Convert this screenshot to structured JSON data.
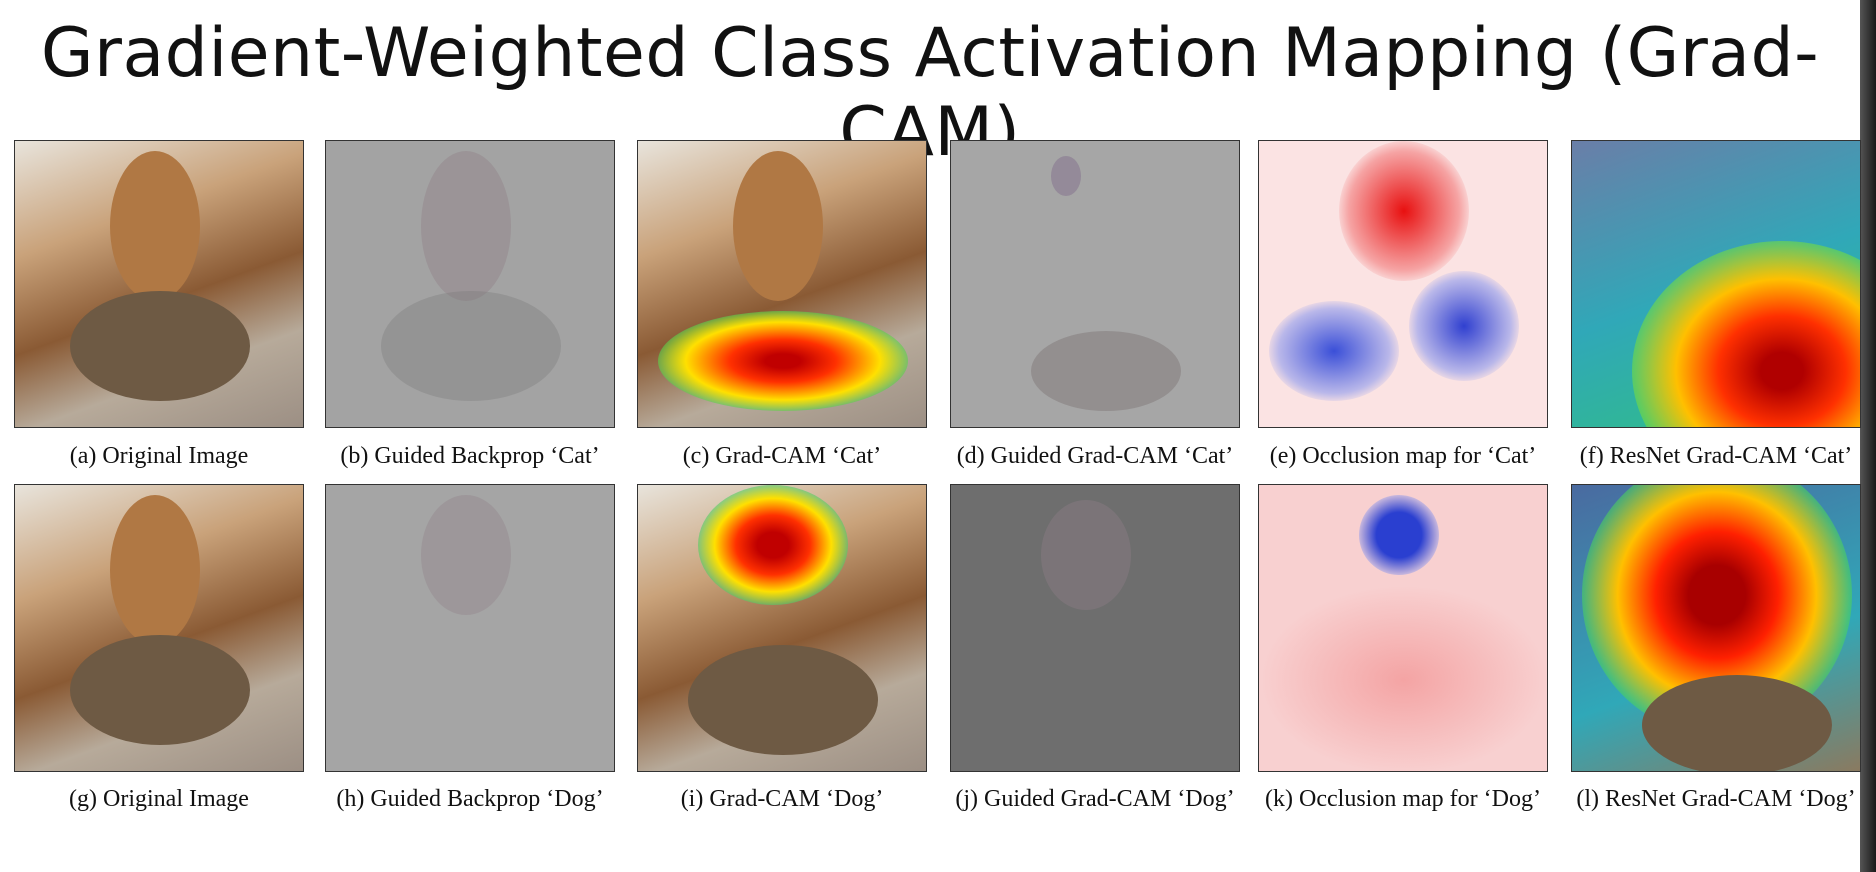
{
  "title": "Gradient-Weighted Class Activation Mapping (Grad-CAM)",
  "panels": [
    {
      "caption": "(a) Original Image"
    },
    {
      "caption": "(b) Guided Backprop ‘Cat’"
    },
    {
      "caption": "(c) Grad-CAM ‘Cat’"
    },
    {
      "caption": "(d) Guided Grad-CAM ‘Cat’"
    },
    {
      "caption": "(e) Occlusion map for ‘Cat’"
    },
    {
      "caption": "(f) ResNet Grad-CAM ‘Cat’"
    },
    {
      "caption": "(g) Original Image"
    },
    {
      "caption": "(h) Guided Backprop ‘Dog’"
    },
    {
      "caption": "(i) Grad-CAM ‘Dog’"
    },
    {
      "caption": "(j) Guided Grad-CAM ‘Dog’"
    },
    {
      "caption": "(k) Occlusion map for ‘Dog’"
    },
    {
      "caption": "(l) ResNet Grad-CAM ‘Dog’"
    }
  ]
}
